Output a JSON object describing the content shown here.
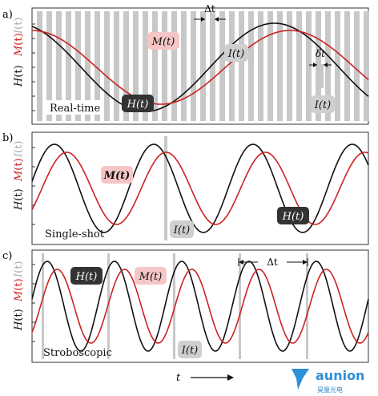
{
  "colors": {
    "h_curve": "#111111",
    "m_curve": "#cc2222",
    "i_bars": "#c8c8c8",
    "h_tag_bg": "#333333",
    "m_tag_bg": "#f6c6c6",
    "i_tag_bg": "#cfcfcf",
    "logo_blue": "#2f8fd8"
  },
  "axis_symbols": {
    "I": "I",
    "M": "M",
    "H": "H",
    "t_paren": "(t)"
  },
  "panels": [
    {
      "letter": "a)",
      "mode_label": "Real-time",
      "h_label": "H(t)",
      "m_label": "M(t)",
      "i_label_1": "I(t)",
      "i_label_2": "I(t)",
      "delta_t_label": "Δt",
      "small_delta_label": "δt"
    },
    {
      "letter": "b)",
      "mode_label": "Single-shot",
      "h_label": "H(t)",
      "m_label": "M(t)",
      "i_label": "I(t)"
    },
    {
      "letter": "c)",
      "mode_label": "Stroboscopic",
      "h_label": "H(t)",
      "m_label": "M(t)",
      "i_label": "I(t)",
      "delta_t_label": "Δt"
    }
  ],
  "time_label": "t",
  "logo": {
    "name": "aunion",
    "subtitle": "昊量光电"
  }
}
